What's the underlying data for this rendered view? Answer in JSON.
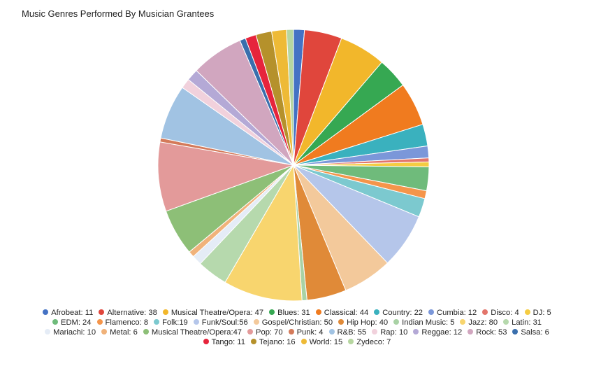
{
  "chart_data": {
    "type": "pie",
    "title": "Music Genres Performed By Musician Grantees",
    "legend_position": "bottom",
    "slices": [
      {
        "label": "Afrobeat: 11",
        "name": "Afrobeat",
        "value": 11,
        "color": "#4472c4"
      },
      {
        "label": "Alternative: 38",
        "name": "Alternative",
        "value": 38,
        "color": "#e0463c"
      },
      {
        "label": "Musical Theatre/Opera: 47",
        "name": "Musical Theatre/Opera",
        "value": 47,
        "color": "#f2b72b"
      },
      {
        "label": "Blues: 31",
        "name": "Blues",
        "value": 31,
        "color": "#36a852"
      },
      {
        "label": "Classical: 44",
        "name": "Classical",
        "value": 44,
        "color": "#f07b1f"
      },
      {
        "label": "Country: 22",
        "name": "Country",
        "value": 22,
        "color": "#3ab1be"
      },
      {
        "label": "Cumbia: 12",
        "name": "Cumbia",
        "value": 12,
        "color": "#7b97d9"
      },
      {
        "label": "Disco: 4",
        "name": "Disco",
        "value": 4,
        "color": "#e3756b"
      },
      {
        "label": "DJ: 5",
        "name": "DJ",
        "value": 5,
        "color": "#f5cc42"
      },
      {
        "label": "EDM: 24",
        "name": "EDM",
        "value": 24,
        "color": "#6fbb7b"
      },
      {
        "label": "Flamenco: 8",
        "name": "Flamenco",
        "value": 8,
        "color": "#f5954a"
      },
      {
        "label": "Folk:19",
        "name": "Folk",
        "value": 19,
        "color": "#7cc9cf"
      },
      {
        "label": "Funk/Soul:56",
        "name": "Funk/Soul",
        "value": 56,
        "color": "#b5c6ea"
      },
      {
        "label": "Gospel/Christian: 50",
        "name": "Gospel/Christian",
        "value": 50,
        "color": "#f3c99b"
      },
      {
        "label": "Hip Hop: 40",
        "name": "Hip Hop",
        "value": 40,
        "color": "#e08a38"
      },
      {
        "label": "Indian Music: 5",
        "name": "Indian Music",
        "value": 5,
        "color": "#a9d2a5"
      },
      {
        "label": "Jazz: 80",
        "name": "Jazz",
        "value": 80,
        "color": "#f8d56e"
      },
      {
        "label": "Latin: 31",
        "name": "Latin",
        "value": 31,
        "color": "#b6d9ad"
      },
      {
        "label": "Mariachi: 10",
        "name": "Mariachi",
        "value": 10,
        "color": "#e5ecf6"
      },
      {
        "label": "Metal: 6",
        "name": "Metal",
        "value": 6,
        "color": "#f0b27a"
      },
      {
        "label": "Musical Theatre/Opera:47",
        "name": "Musical Theatre/Opera",
        "value": 47,
        "color": "#8dbf77"
      },
      {
        "label": "Pop: 70",
        "name": "Pop",
        "value": 70,
        "color": "#e39a9a"
      },
      {
        "label": "Punk: 4",
        "name": "Punk",
        "value": 4,
        "color": "#d47a5a"
      },
      {
        "label": "R&B: 55",
        "name": "R&B",
        "value": 55,
        "color": "#a1c3e3"
      },
      {
        "label": "Rap: 10",
        "name": "Rap",
        "value": 10,
        "color": "#f1d1dc"
      },
      {
        "label": "Reggae: 12",
        "name": "Reggae",
        "value": 12,
        "color": "#b4a9d6"
      },
      {
        "label": "Rock: 53",
        "name": "Rock",
        "value": 53,
        "color": "#d1a6bf"
      },
      {
        "label": "Salsa: 6",
        "name": "Salsa",
        "value": 6,
        "color": "#3a6fad"
      },
      {
        "label": "Tango: 11",
        "name": "Tango",
        "value": 11,
        "color": "#e6243c"
      },
      {
        "label": "Tejano: 16",
        "name": "Tejano",
        "value": 16,
        "color": "#b5912b"
      },
      {
        "label": "World: 15",
        "name": "World",
        "value": 15,
        "color": "#eeba36"
      },
      {
        "label": "Zydeco: 7",
        "name": "Zydeco",
        "value": 7,
        "color": "#b6d6a0"
      }
    ],
    "legend_rows": [
      9,
      9,
      10,
      4
    ]
  }
}
